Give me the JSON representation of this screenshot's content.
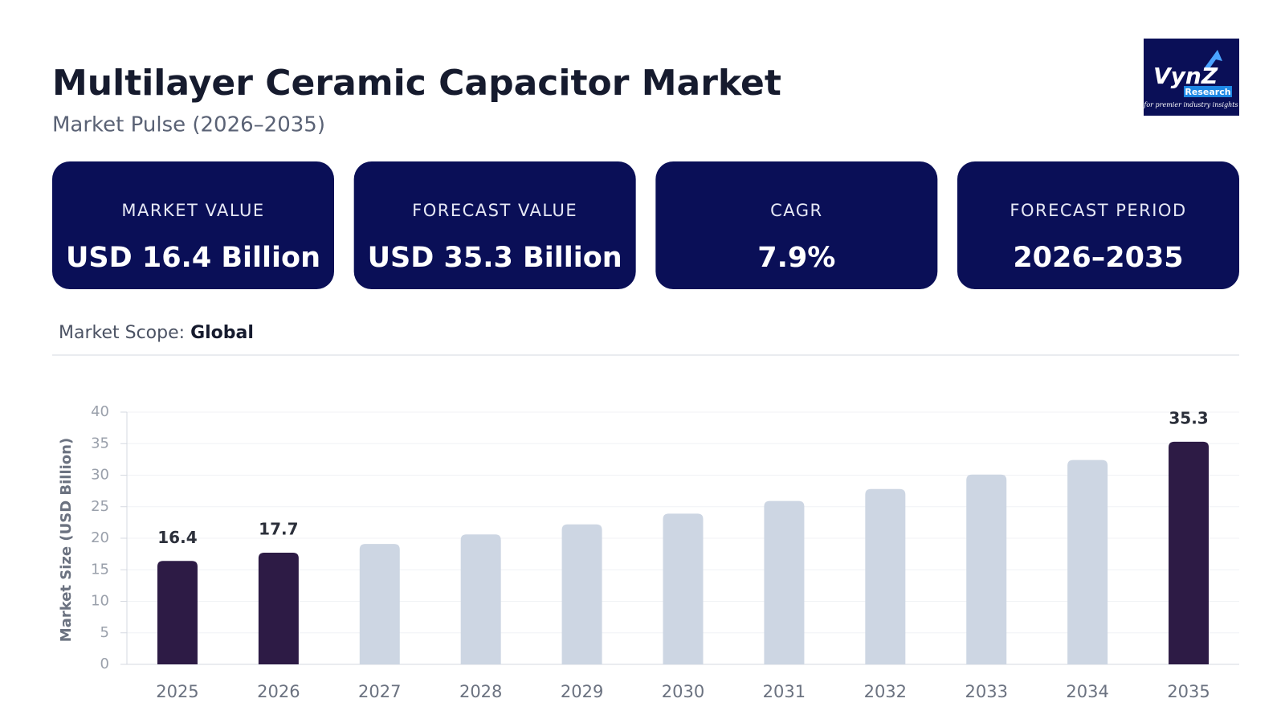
{
  "header": {
    "title": "Multilayer Ceramic Capacitor Market",
    "subtitle": "Market Pulse (2026–2035)"
  },
  "logo": {
    "brand": "VynZ",
    "sub": "Research",
    "tagline": "for premier industry insights"
  },
  "cards": [
    {
      "label": "MARKET VALUE",
      "value": "USD 16.4 Billion"
    },
    {
      "label": "FORECAST VALUE",
      "value": "USD 35.3 Billion"
    },
    {
      "label": "CAGR",
      "value": "7.9%"
    },
    {
      "label": "FORECAST PERIOD",
      "value": "2026–2035"
    }
  ],
  "scope": {
    "label": "Market Scope:",
    "value": "Global"
  },
  "chart_data": {
    "type": "bar",
    "y_label": "Market Size (USD Billion)",
    "categories": [
      "2025",
      "2026",
      "2027",
      "2028",
      "2029",
      "2030",
      "2031",
      "2032",
      "2033",
      "2034",
      "2035"
    ],
    "series": [
      {
        "color": "#2d1b45",
        "labels": true,
        "values": [
          16.4,
          17.7,
          null,
          null,
          null,
          null,
          null,
          null,
          null,
          null,
          35.3
        ]
      },
      {
        "color": "#cdd6e3",
        "labels": false,
        "values": [
          null,
          null,
          19.1,
          20.6,
          22.2,
          23.9,
          25.9,
          27.8,
          30.1,
          32.4,
          null
        ]
      }
    ],
    "ylim": [
      0,
      40
    ],
    "yticks": [
      0,
      5,
      10,
      15,
      20,
      25,
      30,
      35,
      40
    ],
    "grid": true
  }
}
